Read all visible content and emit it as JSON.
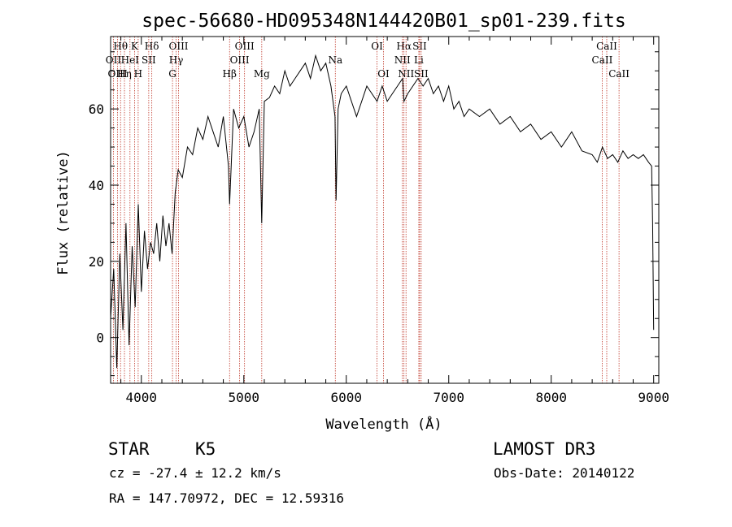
{
  "chart_data": {
    "type": "line",
    "title": "spec-56680-HD095348N144420B01_sp01-239.fits",
    "xlabel": "Wavelength (Å)",
    "ylabel": "Flux (relative)",
    "xlim": [
      3700,
      9050
    ],
    "ylim": [
      -12,
      79
    ],
    "xticks": [
      4000,
      5000,
      6000,
      7000,
      8000,
      9000
    ],
    "xtick_labels": [
      "4000",
      "5000",
      "6000",
      "7000",
      "8000",
      "9000"
    ],
    "yticks": [
      0,
      20,
      40,
      60
    ],
    "ytick_labels": [
      "0",
      "20",
      "40",
      "60"
    ],
    "series": [
      {
        "name": "spectrum",
        "x": [
          3700,
          3730,
          3760,
          3790,
          3820,
          3850,
          3880,
          3910,
          3940,
          3970,
          4000,
          4030,
          4060,
          4090,
          4120,
          4150,
          4180,
          4210,
          4240,
          4270,
          4300,
          4330,
          4360,
          4400,
          4450,
          4500,
          4550,
          4600,
          4650,
          4700,
          4750,
          4800,
          4850,
          4861,
          4900,
          4950,
          5000,
          5050,
          5100,
          5150,
          5175,
          5200,
          5250,
          5300,
          5350,
          5400,
          5450,
          5500,
          5550,
          5600,
          5650,
          5700,
          5750,
          5800,
          5850,
          5890,
          5900,
          5920,
          5950,
          6000,
          6050,
          6100,
          6150,
          6200,
          6250,
          6300,
          6350,
          6400,
          6450,
          6500,
          6550,
          6563,
          6600,
          6650,
          6700,
          6750,
          6800,
          6850,
          6900,
          6950,
          7000,
          7050,
          7100,
          7150,
          7200,
          7300,
          7400,
          7500,
          7600,
          7700,
          7800,
          7900,
          8000,
          8100,
          8200,
          8300,
          8400,
          8450,
          8500,
          8550,
          8600,
          8650,
          8700,
          8750,
          8800,
          8850,
          8900,
          8950,
          8980,
          8990,
          9000
        ],
        "y": [
          5,
          18,
          -8,
          22,
          2,
          30,
          -2,
          24,
          8,
          35,
          12,
          28,
          18,
          25,
          22,
          30,
          20,
          32,
          24,
          30,
          22,
          38,
          44,
          42,
          50,
          48,
          55,
          52,
          58,
          54,
          50,
          58,
          45,
          35,
          60,
          55,
          58,
          50,
          54,
          60,
          30,
          62,
          63,
          66,
          64,
          70,
          66,
          68,
          70,
          72,
          68,
          74,
          70,
          72,
          66,
          58,
          36,
          60,
          64,
          66,
          62,
          58,
          62,
          66,
          64,
          62,
          66,
          62,
          64,
          66,
          68,
          62,
          64,
          66,
          68,
          66,
          68,
          64,
          66,
          62,
          66,
          60,
          62,
          58,
          60,
          58,
          60,
          56,
          58,
          54,
          56,
          52,
          54,
          50,
          54,
          49,
          48,
          46,
          50,
          47,
          48,
          46,
          49,
          47,
          48,
          47,
          48,
          46,
          45,
          30,
          2
        ]
      }
    ],
    "lines": [
      {
        "name": "Hθ",
        "x": 3797,
        "row": 1
      },
      {
        "name": "OII",
        "x": 3727,
        "row": 2
      },
      {
        "name": "OIII",
        "x": 3768,
        "row": 3
      },
      {
        "name": "Hη",
        "x": 3835,
        "row": 3
      },
      {
        "name": "K",
        "x": 3934,
        "row": 1
      },
      {
        "name": "HeI",
        "x": 3889,
        "row": 2
      },
      {
        "name": "H",
        "x": 3969,
        "row": 3
      },
      {
        "name": "Hδ",
        "x": 4102,
        "row": 1
      },
      {
        "name": "SII",
        "x": 4072,
        "row": 2
      },
      {
        "name": "OIII",
        "x": 4363,
        "row": 1
      },
      {
        "name": "Hγ",
        "x": 4340,
        "row": 2
      },
      {
        "name": "G",
        "x": 4304,
        "row": 3
      },
      {
        "name": "OIII",
        "x": 5007,
        "row": 1
      },
      {
        "name": "OIII",
        "x": 4959,
        "row": 2
      },
      {
        "name": "Hβ",
        "x": 4861,
        "row": 3
      },
      {
        "name": "Mg",
        "x": 5175,
        "row": 3
      },
      {
        "name": "Na",
        "x": 5893,
        "row": 2
      },
      {
        "name": "OI",
        "x": 6300,
        "row": 1
      },
      {
        "name": "OI",
        "x": 6363,
        "row": 3
      },
      {
        "name": "Hα",
        "x": 6563,
        "row": 1
      },
      {
        "name": "SII",
        "x": 6716,
        "row": 1
      },
      {
        "name": "NII",
        "x": 6548,
        "row": 2
      },
      {
        "name": "Li",
        "x": 6708,
        "row": 2
      },
      {
        "name": "NII",
        "x": 6583,
        "row": 3
      },
      {
        "name": "SII",
        "x": 6731,
        "row": 3
      },
      {
        "name": "CaII",
        "x": 8542,
        "row": 1
      },
      {
        "name": "CaII",
        "x": 8498,
        "row": 2
      },
      {
        "name": "CaII",
        "x": 8662,
        "row": 3
      }
    ]
  },
  "info": {
    "class": "STAR",
    "subclass": "K5",
    "survey": "LAMOST DR3",
    "cz": "cz = -27.4 ± 12.2 km/s",
    "obs_date": "Obs-Date: 20140122",
    "coords": "RA = 147.70972, DEC =  12.59316"
  }
}
